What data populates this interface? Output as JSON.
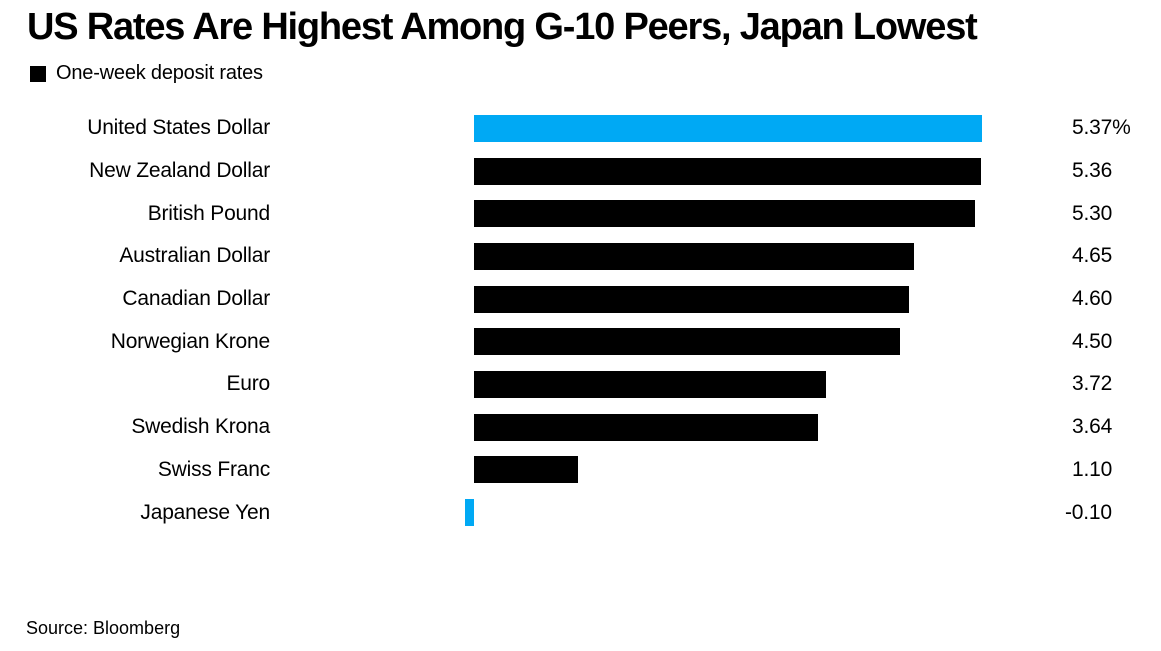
{
  "header": {
    "title": "US Rates Are Highest Among G-10 Peers, Japan Lowest",
    "legend_label": "One-week deposit rates"
  },
  "footer": {
    "source": "Source: Bloomberg"
  },
  "colors": {
    "highlight_blue": "#00a9f4",
    "bar_black": "#000000",
    "text": "#000000",
    "background": "#ffffff"
  },
  "chart_data": {
    "type": "bar",
    "orientation": "horizontal",
    "title": "US Rates Are Highest Among G-10 Peers, Japan Lowest",
    "legend": [
      "One-week deposit rates"
    ],
    "legend_position": "top-left",
    "unit": "%",
    "grid": false,
    "categories": [
      "United States Dollar",
      "New Zealand Dollar",
      "British Pound",
      "Australian Dollar",
      "Canadian Dollar",
      "Norwegian Krone",
      "Euro",
      "Swedish Krona",
      "Swiss Franc",
      "Japanese Yen"
    ],
    "values": [
      5.37,
      5.36,
      5.3,
      4.65,
      4.6,
      4.5,
      3.72,
      3.64,
      1.1,
      -0.1
    ],
    "value_labels": [
      "5.37%",
      "5.36",
      "5.30",
      "4.65",
      "4.60",
      "4.50",
      "3.72",
      "3.64",
      "1.10",
      "-0.10"
    ],
    "bar_colors": [
      "#00a9f4",
      "#000000",
      "#000000",
      "#000000",
      "#000000",
      "#000000",
      "#000000",
      "#000000",
      "#000000",
      "#00a9f4"
    ],
    "source": "Source: Bloomberg"
  }
}
